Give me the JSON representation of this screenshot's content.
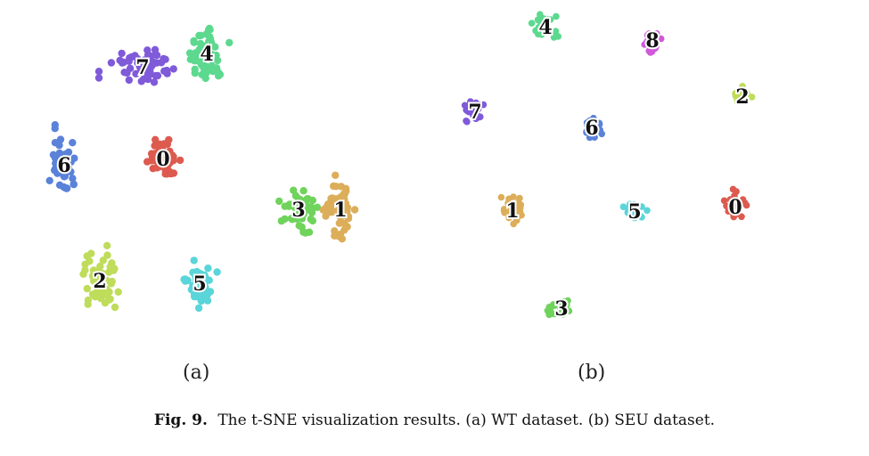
{
  "figure": {
    "caption_number": "Fig. 9.",
    "caption_text": "The t-SNE visualization results. (a) WT dataset. (b) SEU dataset.",
    "panel_labels": [
      "(a)",
      "(b)"
    ]
  },
  "colors": {
    "0": "#dd5a4f",
    "1": "#dcae5a",
    "2": "#bfdc5a",
    "3": "#6fd35c",
    "4": "#5cd98e",
    "5": "#5ad5d9",
    "6": "#5a82d9",
    "7": "#7f5ad9",
    "8": "#cf5ad9"
  },
  "chart_data": [
    {
      "type": "scatter",
      "panel": "(a)",
      "title": "",
      "xlabel": "",
      "ylabel": "",
      "axes_visible": false,
      "grid": false,
      "clusters": [
        {
          "label": "4",
          "center": [
            232,
            60
          ],
          "spread": [
            18,
            30
          ],
          "n": 60
        },
        {
          "label": "7",
          "center": [
            160,
            75
          ],
          "spread": [
            35,
            20
          ],
          "n": 55
        },
        {
          "label": "0",
          "center": [
            183,
            178
          ],
          "spread": [
            15,
            22
          ],
          "n": 55
        },
        {
          "label": "6",
          "center": [
            72,
            185
          ],
          "spread": [
            12,
            32
          ],
          "n": 50
        },
        {
          "label": "3",
          "center": [
            335,
            235
          ],
          "spread": [
            16,
            20
          ],
          "n": 55
        },
        {
          "label": "1",
          "center": [
            382,
            235
          ],
          "spread": [
            14,
            30
          ],
          "n": 55
        },
        {
          "label": "2",
          "center": [
            112,
            315
          ],
          "spread": [
            16,
            28
          ],
          "n": 55
        },
        {
          "label": "5",
          "center": [
            224,
            318
          ],
          "spread": [
            14,
            20
          ],
          "n": 50
        }
      ]
    },
    {
      "type": "scatter",
      "panel": "(b)",
      "title": "",
      "xlabel": "",
      "ylabel": "",
      "axes_visible": false,
      "grid": false,
      "clusters": [
        {
          "label": "4",
          "center": [
            612,
            30
          ],
          "spread": [
            12,
            10
          ],
          "n": 25
        },
        {
          "label": "8",
          "center": [
            732,
            45
          ],
          "spread": [
            10,
            12
          ],
          "n": 30
        },
        {
          "label": "2",
          "center": [
            833,
            108
          ],
          "spread": [
            10,
            8
          ],
          "n": 22
        },
        {
          "label": "7",
          "center": [
            533,
            125
          ],
          "spread": [
            10,
            12
          ],
          "n": 28
        },
        {
          "label": "6",
          "center": [
            664,
            143
          ],
          "spread": [
            8,
            10
          ],
          "n": 22
        },
        {
          "label": "1",
          "center": [
            575,
            236
          ],
          "spread": [
            11,
            14
          ],
          "n": 30
        },
        {
          "label": "5",
          "center": [
            712,
            237
          ],
          "spread": [
            10,
            9
          ],
          "n": 25
        },
        {
          "label": "0",
          "center": [
            825,
            232
          ],
          "spread": [
            9,
            14
          ],
          "n": 25
        },
        {
          "label": "3",
          "center": [
            630,
            346
          ],
          "spread": [
            12,
            8
          ],
          "n": 25
        }
      ]
    }
  ]
}
